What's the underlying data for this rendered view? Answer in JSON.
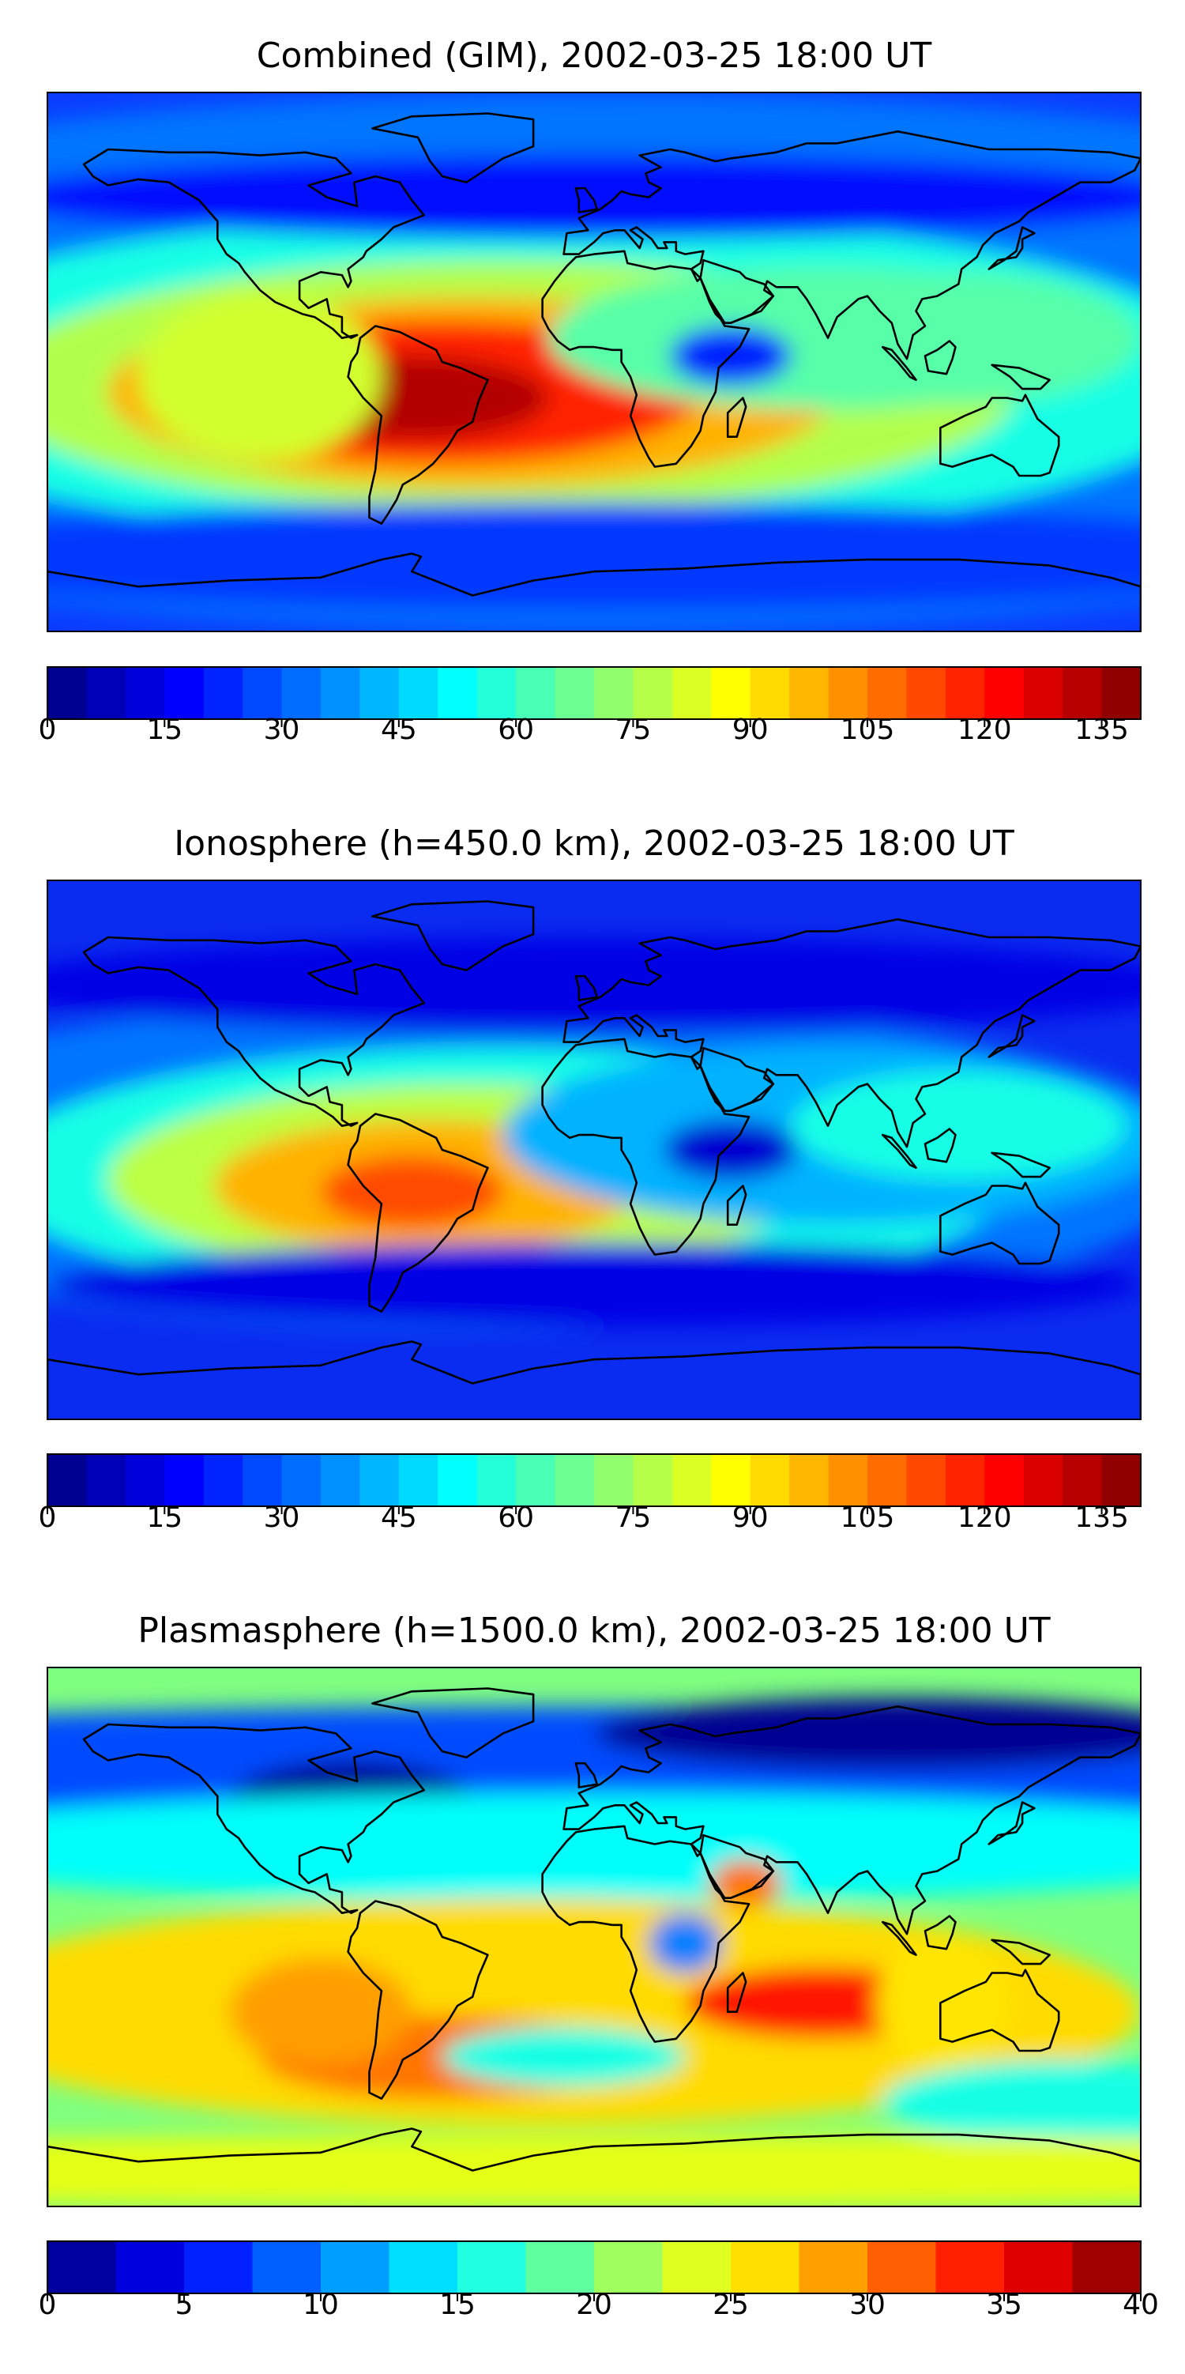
{
  "chart_data": [
    {
      "type": "heatmap",
      "title": "Combined (GIM), 2002-03-25 18:00 UT",
      "colorbar": {
        "min": 0,
        "max": 140,
        "step": 5,
        "tick_labels": [
          "0",
          "15",
          "30",
          "45",
          "60",
          "75",
          "90",
          "105",
          "120",
          "135"
        ]
      },
      "features": [
        {
          "name": "equatorial-anomaly-atlantic",
          "lon": -60,
          "lat": -10,
          "value": 135
        },
        {
          "name": "trough-east-africa",
          "lon": 45,
          "lat": 2,
          "value": 20
        }
      ]
    },
    {
      "type": "heatmap",
      "title": "Ionosphere  (h=450.0 km), 2002-03-25 18:00 UT",
      "colorbar": {
        "min": 0,
        "max": 140,
        "step": 5,
        "tick_labels": [
          "0",
          "15",
          "30",
          "45",
          "60",
          "75",
          "90",
          "105",
          "120",
          "135"
        ]
      },
      "features": [
        {
          "name": "equatorial-anomaly-south-america",
          "lon": -55,
          "lat": -12,
          "value": 105
        },
        {
          "name": "trough-east-africa",
          "lon": 45,
          "lat": 0,
          "value": 10
        }
      ]
    },
    {
      "type": "heatmap",
      "title": "Plasmasphere (h=1500.0 km), 2002-03-25 18:00 UT",
      "colorbar": {
        "min": 0,
        "max": 40,
        "step": 2.5,
        "tick_labels": [
          "0",
          "5",
          "10",
          "15",
          "20",
          "25",
          "30",
          "35",
          "40"
        ]
      },
      "features": [
        {
          "name": "maximum-indian-ocean",
          "lon": 75,
          "lat": -22,
          "value": 34
        },
        {
          "name": "minimum-east-africa",
          "lon": 30,
          "lat": -2,
          "value": 10
        }
      ]
    }
  ],
  "colors": {
    "colormap": [
      "#00007f",
      "#0000ff",
      "#007fff",
      "#00ffff",
      "#7fff7f",
      "#ffff00",
      "#ff7f00",
      "#ff0000",
      "#7f0000"
    ]
  }
}
